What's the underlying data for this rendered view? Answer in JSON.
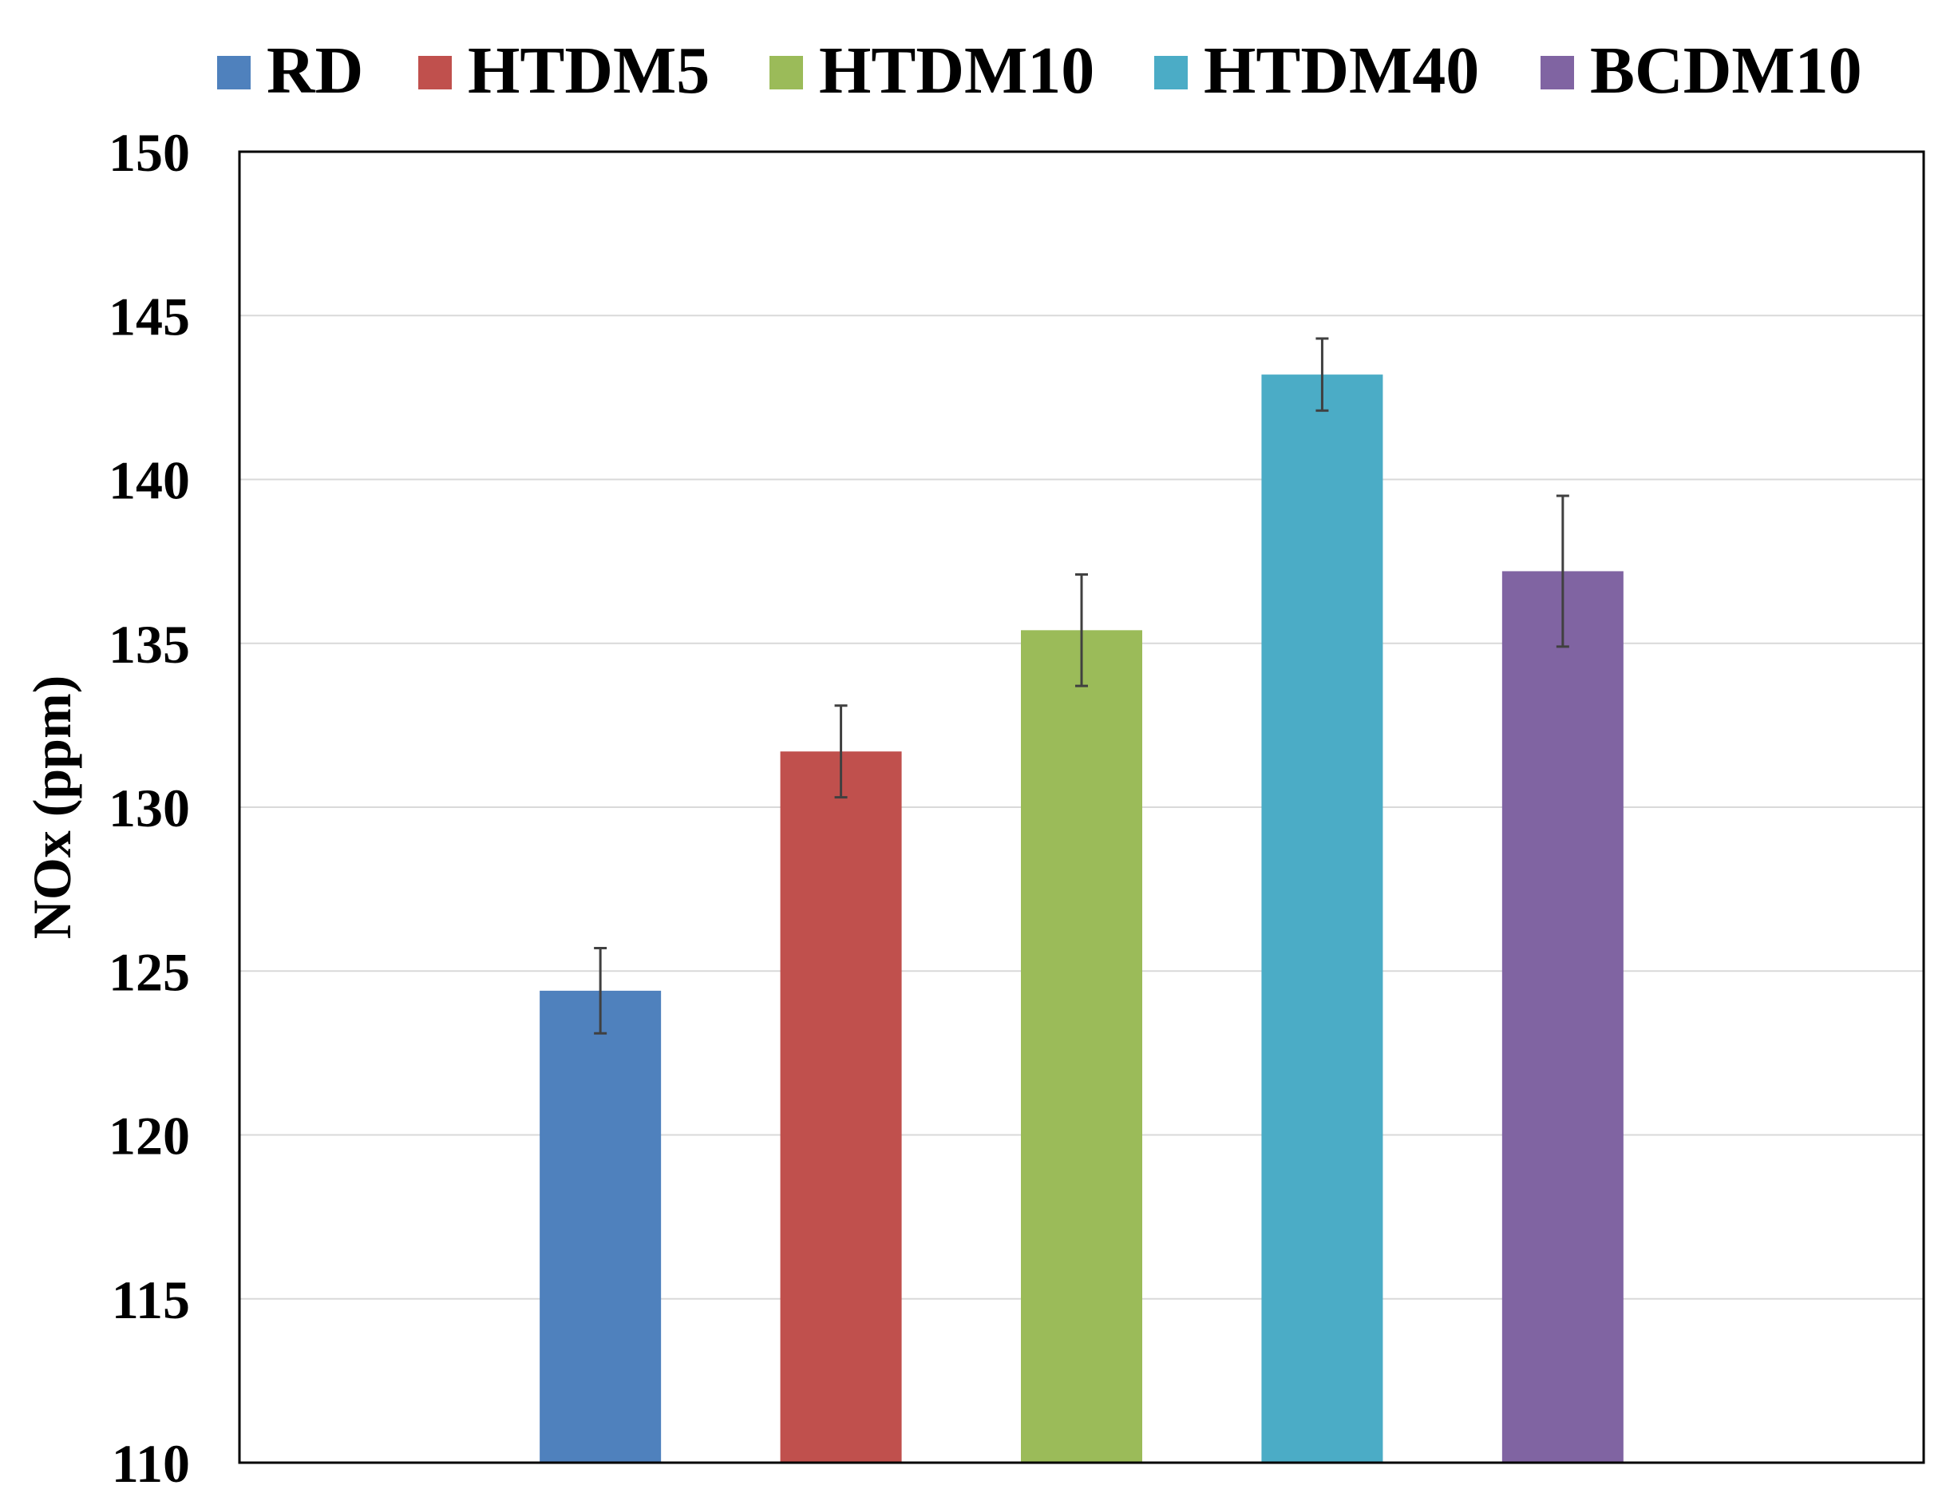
{
  "chart_data": {
    "type": "bar",
    "title": "",
    "xlabel": "",
    "ylabel": "NOx (ppm)",
    "ylim": [
      110,
      150
    ],
    "yticks": [
      110,
      115,
      120,
      125,
      130,
      135,
      140,
      145,
      150
    ],
    "grid": true,
    "legend_position": "top",
    "series": [
      {
        "name": "RD",
        "value": 124.4,
        "error": 1.3,
        "color": "#4F81BD"
      },
      {
        "name": "HTDM5",
        "value": 131.7,
        "error": 1.4,
        "color": "#C0504D"
      },
      {
        "name": "HTDM10",
        "value": 135.4,
        "error": 1.7,
        "color": "#9BBB59"
      },
      {
        "name": "HTDM40",
        "value": 143.2,
        "error": 1.1,
        "color": "#4BACC6"
      },
      {
        "name": "BCDM10",
        "value": 137.2,
        "error": 2.3,
        "color": "#8064A2"
      }
    ]
  }
}
